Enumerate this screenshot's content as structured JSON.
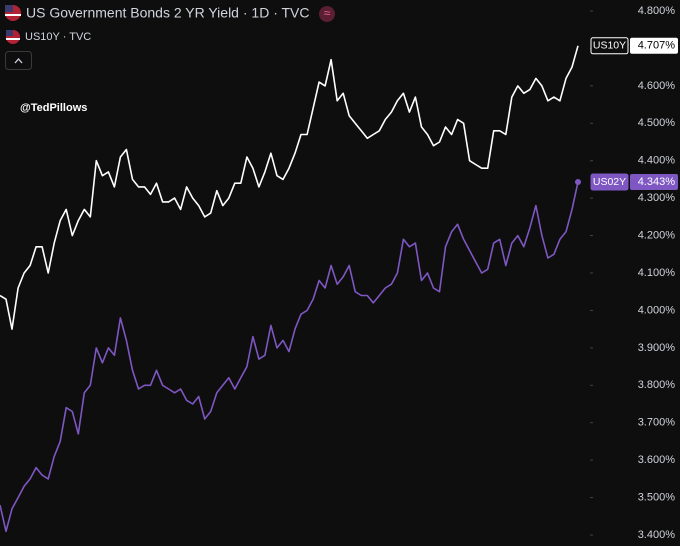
{
  "chart_data": {
    "type": "line",
    "title": "US Government Bonds 2 YR Yield · 1D · TVC",
    "legend_secondary": "US10Y · TVC",
    "annotation": "@TedPillows",
    "ylim": [
      3.4,
      4.8
    ],
    "yticks": [
      {
        "value": 3.4,
        "label": "3.400%"
      },
      {
        "value": 3.5,
        "label": "3.500%"
      },
      {
        "value": 3.6,
        "label": "3.600%"
      },
      {
        "value": 3.7,
        "label": "3.700%"
      },
      {
        "value": 3.8,
        "label": "3.800%"
      },
      {
        "value": 3.9,
        "label": "3.900%"
      },
      {
        "value": 4.0,
        "label": "4.000%"
      },
      {
        "value": 4.1,
        "label": "4.100%"
      },
      {
        "value": 4.2,
        "label": "4.200%"
      },
      {
        "value": 4.3,
        "label": "4.300%"
      },
      {
        "value": 4.4,
        "label": "4.400%"
      },
      {
        "value": 4.5,
        "label": "4.500%"
      },
      {
        "value": 4.6,
        "label": "4.600%"
      },
      {
        "value": 4.7,
        "label": "4.700%"
      },
      {
        "value": 4.8,
        "label": "4.800%"
      }
    ],
    "grid": false,
    "series": [
      {
        "name": "US10Y",
        "color": "#ffffff",
        "values": [
          4.04,
          4.03,
          3.95,
          4.06,
          4.1,
          4.12,
          4.17,
          4.17,
          4.1,
          4.18,
          4.24,
          4.27,
          4.2,
          4.24,
          4.27,
          4.25,
          4.4,
          4.36,
          4.37,
          4.33,
          4.41,
          4.43,
          4.35,
          4.33,
          4.33,
          4.31,
          4.34,
          4.29,
          4.29,
          4.3,
          4.27,
          4.33,
          4.3,
          4.28,
          4.25,
          4.26,
          4.32,
          4.28,
          4.3,
          4.34,
          4.34,
          4.41,
          4.38,
          4.33,
          4.37,
          4.42,
          4.36,
          4.35,
          4.38,
          4.42,
          4.47,
          4.47,
          4.54,
          4.61,
          4.6,
          4.67,
          4.56,
          4.58,
          4.52,
          4.5,
          4.48,
          4.46,
          4.47,
          4.48,
          4.51,
          4.53,
          4.56,
          4.58,
          4.53,
          4.57,
          4.49,
          4.47,
          4.44,
          4.45,
          4.49,
          4.47,
          4.51,
          4.5,
          4.4,
          4.39,
          4.38,
          4.38,
          4.48,
          4.48,
          4.47,
          4.57,
          4.6,
          4.58,
          4.59,
          4.62,
          4.6,
          4.56,
          4.57,
          4.56,
          4.62,
          4.65,
          4.707
        ],
        "value_labels": [
          null,
          null,
          null,
          null,
          null,
          null,
          null,
          null,
          null,
          null,
          null,
          null,
          null,
          null,
          null,
          null,
          null,
          null,
          null,
          null,
          null,
          null,
          null,
          null,
          null,
          null,
          null,
          null,
          null,
          null,
          null,
          null,
          null,
          null,
          null,
          null,
          null,
          null,
          null,
          null,
          null,
          null,
          null,
          null,
          null,
          null,
          null,
          null,
          null,
          null,
          null,
          null,
          null,
          null,
          null,
          null,
          null,
          null,
          null,
          null,
          null,
          null,
          null,
          null,
          null,
          null,
          null,
          null,
          null,
          null,
          null,
          null,
          null,
          null,
          null,
          null,
          null,
          null,
          null,
          null,
          null,
          null,
          null,
          null,
          null,
          null,
          null,
          null,
          null,
          null,
          null,
          null,
          null,
          null,
          null,
          null,
          "4.707%"
        ]
      },
      {
        "name": "US02Y",
        "color": "#7e57c2",
        "values": [
          3.48,
          3.41,
          3.47,
          3.5,
          3.53,
          3.55,
          3.58,
          3.56,
          3.55,
          3.61,
          3.65,
          3.74,
          3.73,
          3.67,
          3.78,
          3.8,
          3.9,
          3.86,
          3.9,
          3.88,
          3.98,
          3.92,
          3.84,
          3.79,
          3.8,
          3.8,
          3.84,
          3.8,
          3.79,
          3.78,
          3.79,
          3.76,
          3.75,
          3.77,
          3.71,
          3.73,
          3.78,
          3.8,
          3.82,
          3.79,
          3.82,
          3.85,
          3.93,
          3.87,
          3.88,
          3.96,
          3.9,
          3.92,
          3.89,
          3.95,
          3.99,
          4.0,
          4.03,
          4.08,
          4.06,
          4.12,
          4.07,
          4.09,
          4.12,
          4.05,
          4.04,
          4.04,
          4.02,
          4.04,
          4.06,
          4.07,
          4.1,
          4.19,
          4.17,
          4.18,
          4.08,
          4.1,
          4.06,
          4.05,
          4.17,
          4.21,
          4.23,
          4.19,
          4.16,
          4.13,
          4.1,
          4.11,
          4.18,
          4.19,
          4.12,
          4.18,
          4.2,
          4.17,
          4.22,
          4.28,
          4.2,
          4.14,
          4.15,
          4.19,
          4.21,
          4.27,
          4.343
        ],
        "value_labels": [
          null,
          null,
          null,
          null,
          null,
          null,
          null,
          null,
          null,
          null,
          null,
          null,
          null,
          null,
          null,
          null,
          null,
          null,
          null,
          null,
          null,
          null,
          null,
          null,
          null,
          null,
          null,
          null,
          null,
          null,
          null,
          null,
          null,
          null,
          null,
          null,
          null,
          null,
          null,
          null,
          null,
          null,
          null,
          null,
          null,
          null,
          null,
          null,
          null,
          null,
          null,
          null,
          null,
          null,
          null,
          null,
          null,
          null,
          null,
          null,
          null,
          null,
          null,
          null,
          null,
          null,
          null,
          null,
          null,
          null,
          null,
          null,
          null,
          null,
          null,
          null,
          null,
          null,
          null,
          null,
          null,
          null,
          null,
          null,
          null,
          null,
          null,
          null,
          null,
          null,
          null,
          null,
          null,
          null,
          null,
          null,
          "4.343%"
        ]
      }
    ]
  }
}
